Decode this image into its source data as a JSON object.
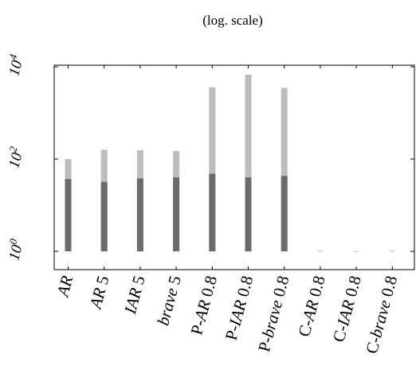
{
  "chart_data": {
    "type": "bar",
    "title": "(log. scale)",
    "xlabel": "",
    "ylabel": "",
    "yscale": "log",
    "ylim": [
      1,
      10000
    ],
    "yticks": [
      {
        "value": 1,
        "base": "10",
        "exp": "0"
      },
      {
        "value": 100,
        "base": "10",
        "exp": "2"
      },
      {
        "value": 10000,
        "base": "10",
        "exp": "4"
      }
    ],
    "categories": [
      "AR",
      "AR 5",
      "IAR 5",
      "brave 5",
      "P-AR 0.8",
      "P-IAR 0.8",
      "P-brave 0.8",
      "C-AR 0.8",
      "C-IAR 0.8",
      "C-brave 0.8"
    ],
    "category_italic_parts": [
      [
        {
          "text": "AR",
          "italic": true
        }
      ],
      [
        {
          "text": "AR",
          "italic": true
        },
        {
          "text": " 5",
          "italic": false
        }
      ],
      [
        {
          "text": "IAR",
          "italic": true
        },
        {
          "text": " 5",
          "italic": false
        }
      ],
      [
        {
          "text": "brave",
          "italic": true
        },
        {
          "text": " 5",
          "italic": false
        }
      ],
      [
        {
          "text": "P-",
          "italic": false
        },
        {
          "text": "AR",
          "italic": true
        },
        {
          "text": " 0.8",
          "italic": false
        }
      ],
      [
        {
          "text": "P-",
          "italic": false
        },
        {
          "text": "IAR",
          "italic": true
        },
        {
          "text": " 0.8",
          "italic": false
        }
      ],
      [
        {
          "text": "P-",
          "italic": false
        },
        {
          "text": "brave",
          "italic": true
        },
        {
          "text": " 0.8",
          "italic": false
        }
      ],
      [
        {
          "text": "C-",
          "italic": false
        },
        {
          "text": "AR",
          "italic": true
        },
        {
          "text": " 0.8",
          "italic": false
        }
      ],
      [
        {
          "text": "C-",
          "italic": false
        },
        {
          "text": "IAR",
          "italic": true
        },
        {
          "text": " 0.8",
          "italic": false
        }
      ],
      [
        {
          "text": "C-",
          "italic": false
        },
        {
          "text": "brave",
          "italic": true
        },
        {
          "text": " 0.8",
          "italic": false
        }
      ]
    ],
    "series": [
      {
        "color": "#6b6b6b",
        "values": [
          37,
          32,
          38,
          40,
          48,
          40,
          43,
          1,
          1,
          1
        ]
      },
      {
        "color": "#bdbdbd",
        "values": [
          100,
          160,
          155,
          150,
          3600,
          6800,
          3500,
          1,
          1,
          1
        ]
      }
    ],
    "grid": false,
    "legend": "none"
  }
}
